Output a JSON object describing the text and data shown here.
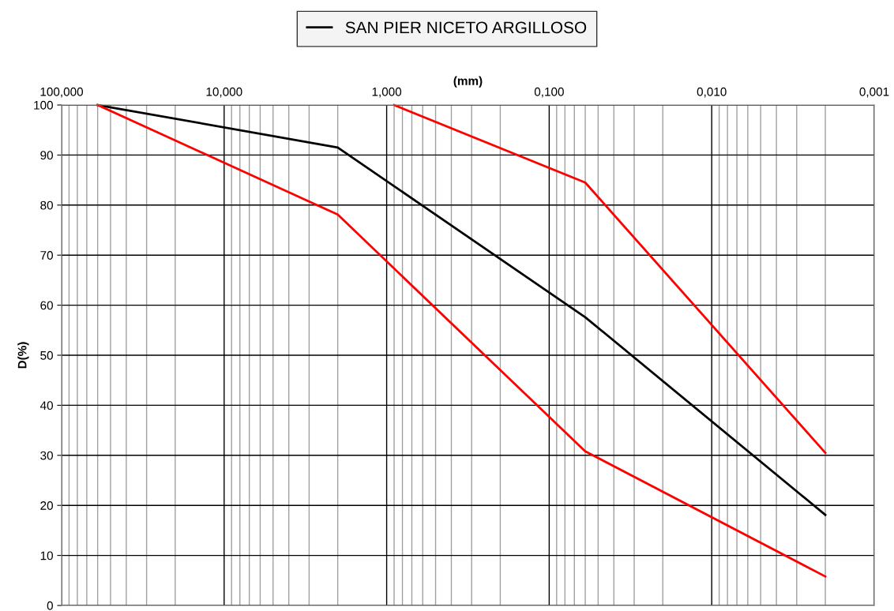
{
  "chart_data": {
    "type": "line",
    "xlabel": "(mm)",
    "ylabel": "D(%)",
    "log": "x",
    "grid": true,
    "legend": "top",
    "line_style": "solid",
    "marker": "none",
    "xlim": [
      100,
      0.001
    ],
    "ylim": [
      0,
      100
    ],
    "xticks": [
      {
        "value": 100,
        "label": "100,000"
      },
      {
        "value": 10,
        "label": "10,000"
      },
      {
        "value": 1,
        "label": "1,000"
      },
      {
        "value": 0.1,
        "label": "0,100"
      },
      {
        "value": 0.01,
        "label": "0,010"
      },
      {
        "value": 0.001,
        "label": "0,001"
      }
    ],
    "yticks": [
      0,
      10,
      20,
      30,
      40,
      50,
      60,
      70,
      80,
      90,
      100
    ],
    "series": [
      {
        "name": "SAN PIER NICETO ARGILLOSO",
        "color": "#000000",
        "x": [
          60,
          2,
          0.06,
          0.002
        ],
        "values": [
          100,
          91.5,
          57.6,
          18.1
        ]
      },
      {
        "color": "#ff0000",
        "x": [
          60,
          2,
          0.06,
          0.002
        ],
        "values": [
          100,
          78.1,
          30.8,
          5.8
        ]
      },
      {
        "color": "#ff0000",
        "x": [
          0.9,
          0.06,
          0.002
        ],
        "values": [
          100,
          84.5,
          30.5
        ]
      }
    ]
  }
}
